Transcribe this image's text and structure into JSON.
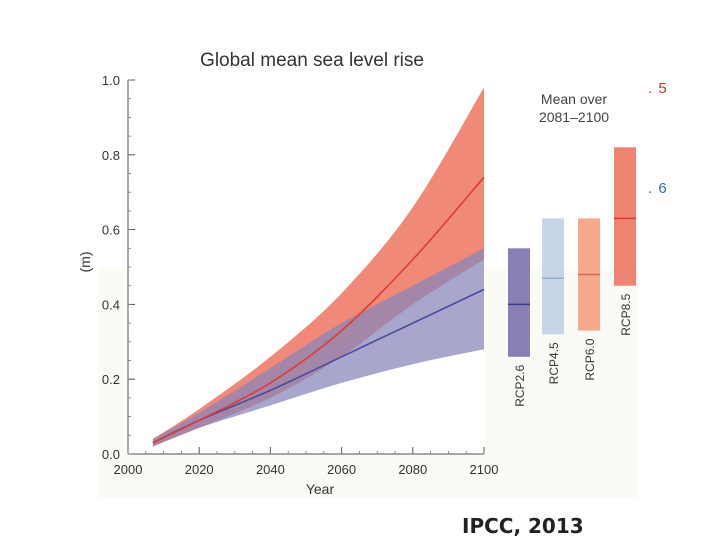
{
  "chart_data": {
    "type": "area",
    "title": "Global mean sea level rise",
    "xlabel": "Year",
    "ylabel": "(m)",
    "xlim": [
      2000,
      2100
    ],
    "ylim": [
      0.0,
      1.0
    ],
    "xticks": [
      2000,
      2020,
      2040,
      2060,
      2080,
      2100
    ],
    "xtick_labels": [
      "2000",
      "2020",
      "2040",
      "2060",
      "2080",
      "2100"
    ],
    "yticks": [
      0.0,
      0.2,
      0.4,
      0.6,
      0.8,
      1.0
    ],
    "ytick_labels": [
      "0.0",
      "0.2",
      "0.4",
      "0.6",
      "0.8",
      "1.0"
    ],
    "x": [
      2007,
      2020,
      2040,
      2060,
      2080,
      2100
    ],
    "series": [
      {
        "name": "RCP2.6",
        "color": "#4b4b9c",
        "band_color": "#8585bb",
        "mean": [
          0.03,
          0.09,
          0.17,
          0.26,
          0.35,
          0.44
        ],
        "lower": [
          0.02,
          0.07,
          0.13,
          0.19,
          0.24,
          0.28
        ],
        "upper": [
          0.04,
          0.11,
          0.23,
          0.35,
          0.45,
          0.55
        ]
      },
      {
        "name": "RCP8.5",
        "color": "#e03c31",
        "band_color": "#ee7c68",
        "mean": [
          0.03,
          0.09,
          0.19,
          0.33,
          0.52,
          0.74
        ],
        "lower": [
          0.02,
          0.07,
          0.15,
          0.26,
          0.4,
          0.52
        ],
        "upper": [
          0.04,
          0.12,
          0.26,
          0.43,
          0.66,
          0.98
        ]
      }
    ],
    "side_panel": {
      "title": "Mean over 2081–2100",
      "bars": [
        {
          "label": "RCP2.6",
          "mean": 0.4,
          "low": 0.26,
          "high": 0.55,
          "fill": "#8a7fb5",
          "line": "#3b3b8f"
        },
        {
          "label": "RCP4.5",
          "mean": 0.47,
          "low": 0.32,
          "high": 0.63,
          "fill": "#c8d4e8",
          "line": "#8fb0d6"
        },
        {
          "label": "RCP6.0",
          "mean": 0.48,
          "low": 0.33,
          "high": 0.63,
          "fill": "#f4a98c",
          "line": "#dc6a4a"
        },
        {
          "label": "RCP8.5",
          "mean": 0.63,
          "low": 0.45,
          "high": 0.82,
          "fill": "#ee8372",
          "line": "#d93a2b"
        }
      ]
    }
  },
  "annotations": {
    "red_note": ". 5",
    "blue_note": ". 6"
  },
  "citation": "IPCC, 2013"
}
